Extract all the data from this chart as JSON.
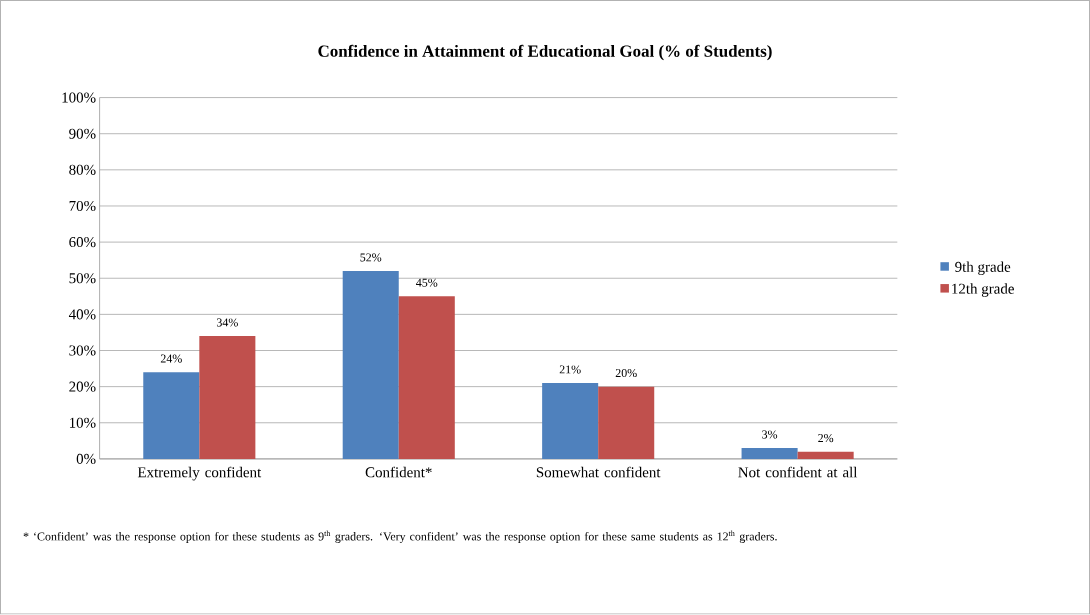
{
  "chart_data": {
    "type": "bar",
    "title": "Confidence in Attainment of Educational Goal (% of Students)",
    "categories": [
      "Extremely confident",
      "Confident*",
      "Somewhat confident",
      "Not confident at all"
    ],
    "series": [
      {
        "name": "9th grade",
        "color": "#4f81bd",
        "values": [
          24,
          52,
          21,
          3
        ],
        "value_labels": [
          "24%",
          "52%",
          "21%",
          "3%"
        ]
      },
      {
        "name": "12th grade",
        "color": "#c0504d",
        "values": [
          34,
          45,
          20,
          2
        ],
        "value_labels": [
          "34%",
          "45%",
          "20%",
          "2%"
        ]
      }
    ],
    "ylim": [
      0,
      100
    ],
    "yticks": [
      {
        "value": 0,
        "label": "0%"
      },
      {
        "value": 10,
        "label": "10%"
      },
      {
        "value": 20,
        "label": "20%"
      },
      {
        "value": 30,
        "label": "30%"
      },
      {
        "value": 40,
        "label": "40%"
      },
      {
        "value": 50,
        "label": "50%"
      },
      {
        "value": 60,
        "label": "60%"
      },
      {
        "value": 70,
        "label": "70%"
      },
      {
        "value": 80,
        "label": "80%"
      },
      {
        "value": 90,
        "label": "90%"
      },
      {
        "value": 100,
        "label": "100%"
      }
    ],
    "grid": "y",
    "legend": "right",
    "annotations": [
      "* ‘Confident’ was the response option for these students as 9$^{th}$ graders.  ‘Very confident’ was the response option for these same students as 12$^{th}$ graders."
    ]
  }
}
